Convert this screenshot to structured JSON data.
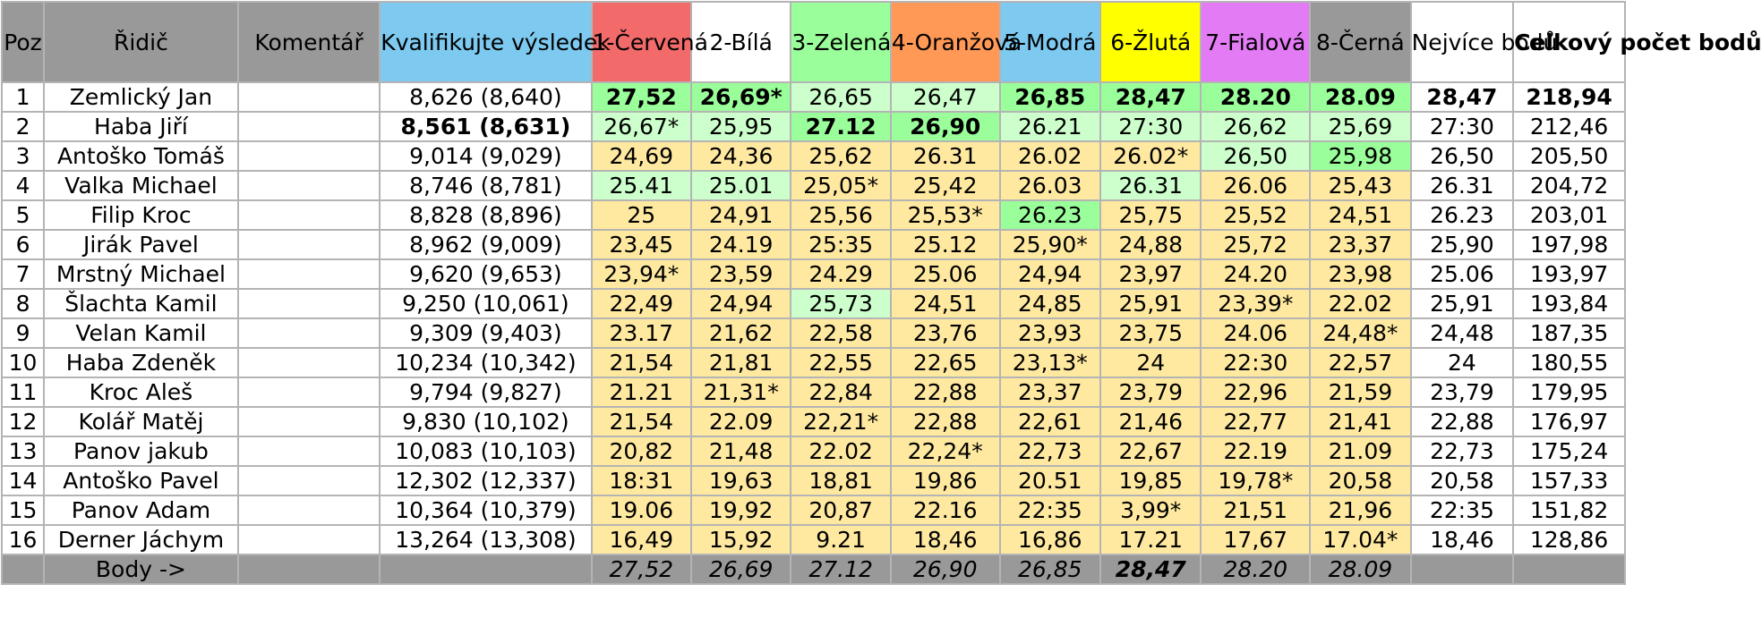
{
  "table": {
    "headers": {
      "pos": "Poz",
      "driver": "Řidič",
      "comment": "Komentář",
      "qual": "Kvalifikujte výsledek",
      "best": "Nejvíce bodů",
      "total": "Celkový počet bodů"
    },
    "lanes": [
      {
        "label": "1-Červená",
        "color": "#f26a6a"
      },
      {
        "label": "2-Bílá",
        "color": "#ffffff"
      },
      {
        "label": "3-Zelená",
        "color": "#9aff9a"
      },
      {
        "label": "4-Oranžová",
        "color": "#ff9955"
      },
      {
        "label": "5-Modrá",
        "color": "#7dc9f0"
      },
      {
        "label": "6-Žlutá",
        "color": "#ffff00"
      },
      {
        "label": "7-Fialová",
        "color": "#e37bf5"
      },
      {
        "label": "8-Černá",
        "color": "#999999"
      }
    ],
    "qual_header_color": "#7dc9f0",
    "rows": [
      {
        "pos": "1",
        "driver": "Zemlický Jan",
        "comment": "",
        "qual": "8,626 (8,640)",
        "qual_bold": false,
        "lanes": [
          {
            "v": "27,52",
            "c": "g",
            "b": true
          },
          {
            "v": "26,69*",
            "c": "g",
            "b": true
          },
          {
            "v": "26,65",
            "c": "lg",
            "b": false
          },
          {
            "v": "26,47",
            "c": "lg",
            "b": false
          },
          {
            "v": "26,85",
            "c": "g",
            "b": true
          },
          {
            "v": "28,47",
            "c": "g",
            "b": true
          },
          {
            "v": "28.20",
            "c": "g",
            "b": true
          },
          {
            "v": "28.09",
            "c": "g",
            "b": true
          }
        ],
        "best": "28,47",
        "total": "218,94",
        "bold_tail": true
      },
      {
        "pos": "2",
        "driver": "Haba Jiří",
        "comment": "",
        "qual": "8,561 (8,631)",
        "qual_bold": true,
        "lanes": [
          {
            "v": "26,67*",
            "c": "lg",
            "b": false
          },
          {
            "v": "25,95",
            "c": "lg",
            "b": false
          },
          {
            "v": "27.12",
            "c": "g",
            "b": true
          },
          {
            "v": "26,90",
            "c": "g",
            "b": true
          },
          {
            "v": "26.21",
            "c": "lg",
            "b": false
          },
          {
            "v": "27:30",
            "c": "lg",
            "b": false
          },
          {
            "v": "26,62",
            "c": "lg",
            "b": false
          },
          {
            "v": "25,69",
            "c": "lg",
            "b": false
          }
        ],
        "best": "27:30",
        "total": "212,46",
        "bold_tail": false
      },
      {
        "pos": "3",
        "driver": "Antoško Tomáš",
        "comment": "",
        "qual": "9,014 (9,029)",
        "qual_bold": false,
        "lanes": [
          {
            "v": "24,69",
            "c": "y",
            "b": false
          },
          {
            "v": "24,36",
            "c": "y",
            "b": false
          },
          {
            "v": "25,62",
            "c": "y",
            "b": false
          },
          {
            "v": "26.31",
            "c": "y",
            "b": false
          },
          {
            "v": "26.02",
            "c": "y",
            "b": false
          },
          {
            "v": "26.02*",
            "c": "y",
            "b": false
          },
          {
            "v": "26,50",
            "c": "lg",
            "b": false
          },
          {
            "v": "25,98",
            "c": "g",
            "b": false
          }
        ],
        "best": "26,50",
        "total": "205,50",
        "bold_tail": false
      },
      {
        "pos": "4",
        "driver": "Valka Michael",
        "comment": "",
        "qual": "8,746 (8,781)",
        "qual_bold": false,
        "lanes": [
          {
            "v": "25.41",
            "c": "lg",
            "b": false
          },
          {
            "v": "25.01",
            "c": "lg",
            "b": false
          },
          {
            "v": "25,05*",
            "c": "y",
            "b": false
          },
          {
            "v": "25,42",
            "c": "y",
            "b": false
          },
          {
            "v": "26.03",
            "c": "y",
            "b": false
          },
          {
            "v": "26.31",
            "c": "lg",
            "b": false
          },
          {
            "v": "26.06",
            "c": "y",
            "b": false
          },
          {
            "v": "25,43",
            "c": "y",
            "b": false
          }
        ],
        "best": "26.31",
        "total": "204,72",
        "bold_tail": false
      },
      {
        "pos": "5",
        "driver": "Filip Kroc",
        "comment": "",
        "qual": "8,828 (8,896)",
        "qual_bold": false,
        "lanes": [
          {
            "v": "25",
            "c": "y",
            "b": false
          },
          {
            "v": "24,91",
            "c": "y",
            "b": false
          },
          {
            "v": "25,56",
            "c": "y",
            "b": false
          },
          {
            "v": "25,53*",
            "c": "y",
            "b": false
          },
          {
            "v": "26.23",
            "c": "g",
            "b": false
          },
          {
            "v": "25,75",
            "c": "y",
            "b": false
          },
          {
            "v": "25,52",
            "c": "y",
            "b": false
          },
          {
            "v": "24,51",
            "c": "y",
            "b": false
          }
        ],
        "best": "26.23",
        "total": "203,01",
        "bold_tail": false
      },
      {
        "pos": "6",
        "driver": "Jirák Pavel",
        "comment": "",
        "qual": "8,962 (9,009)",
        "qual_bold": false,
        "lanes": [
          {
            "v": "23,45",
            "c": "y",
            "b": false
          },
          {
            "v": "24.19",
            "c": "y",
            "b": false
          },
          {
            "v": "25:35",
            "c": "y",
            "b": false
          },
          {
            "v": "25.12",
            "c": "y",
            "b": false
          },
          {
            "v": "25,90*",
            "c": "y",
            "b": false
          },
          {
            "v": "24,88",
            "c": "y",
            "b": false
          },
          {
            "v": "25,72",
            "c": "y",
            "b": false
          },
          {
            "v": "23,37",
            "c": "y",
            "b": false
          }
        ],
        "best": "25,90",
        "total": "197,98",
        "bold_tail": false
      },
      {
        "pos": "7",
        "driver": "Mrstný Michael",
        "comment": "",
        "qual": "9,620 (9,653)",
        "qual_bold": false,
        "lanes": [
          {
            "v": "23,94*",
            "c": "y",
            "b": false
          },
          {
            "v": "23,59",
            "c": "y",
            "b": false
          },
          {
            "v": "24.29",
            "c": "y",
            "b": false
          },
          {
            "v": "25.06",
            "c": "y",
            "b": false
          },
          {
            "v": "24,94",
            "c": "y",
            "b": false
          },
          {
            "v": "23,97",
            "c": "y",
            "b": false
          },
          {
            "v": "24.20",
            "c": "y",
            "b": false
          },
          {
            "v": "23,98",
            "c": "y",
            "b": false
          }
        ],
        "best": "25.06",
        "total": "193,97",
        "bold_tail": false
      },
      {
        "pos": "8",
        "driver": "Šlachta Kamil",
        "comment": "",
        "qual": "9,250 (10,061)",
        "qual_bold": false,
        "lanes": [
          {
            "v": "22,49",
            "c": "y",
            "b": false
          },
          {
            "v": "24,94",
            "c": "y",
            "b": false
          },
          {
            "v": "25,73",
            "c": "lg",
            "b": false
          },
          {
            "v": "24,51",
            "c": "y",
            "b": false
          },
          {
            "v": "24,85",
            "c": "y",
            "b": false
          },
          {
            "v": "25,91",
            "c": "y",
            "b": false
          },
          {
            "v": "23,39*",
            "c": "y",
            "b": false
          },
          {
            "v": "22.02",
            "c": "y",
            "b": false
          }
        ],
        "best": "25,91",
        "total": "193,84",
        "bold_tail": false
      },
      {
        "pos": "9",
        "driver": "Velan Kamil",
        "comment": "",
        "qual": "9,309 (9,403)",
        "qual_bold": false,
        "lanes": [
          {
            "v": "23.17",
            "c": "y",
            "b": false
          },
          {
            "v": "21,62",
            "c": "y",
            "b": false
          },
          {
            "v": "22,58",
            "c": "y",
            "b": false
          },
          {
            "v": "23,76",
            "c": "y",
            "b": false
          },
          {
            "v": "23,93",
            "c": "y",
            "b": false
          },
          {
            "v": "23,75",
            "c": "y",
            "b": false
          },
          {
            "v": "24.06",
            "c": "y",
            "b": false
          },
          {
            "v": "24,48*",
            "c": "y",
            "b": false
          }
        ],
        "best": "24,48",
        "total": "187,35",
        "bold_tail": false
      },
      {
        "pos": "10",
        "driver": "Haba Zdeněk",
        "comment": "",
        "qual": "10,234 (10,342)",
        "qual_bold": false,
        "lanes": [
          {
            "v": "21,54",
            "c": "y",
            "b": false
          },
          {
            "v": "21,81",
            "c": "y",
            "b": false
          },
          {
            "v": "22,55",
            "c": "y",
            "b": false
          },
          {
            "v": "22,65",
            "c": "y",
            "b": false
          },
          {
            "v": "23,13*",
            "c": "y",
            "b": false
          },
          {
            "v": "24",
            "c": "y",
            "b": false
          },
          {
            "v": "22:30",
            "c": "y",
            "b": false
          },
          {
            "v": "22,57",
            "c": "y",
            "b": false
          }
        ],
        "best": "24",
        "total": "180,55",
        "bold_tail": false
      },
      {
        "pos": "11",
        "driver": "Kroc Aleš",
        "comment": "",
        "qual": "9,794 (9,827)",
        "qual_bold": false,
        "lanes": [
          {
            "v": "21.21",
            "c": "y",
            "b": false
          },
          {
            "v": "21,31*",
            "c": "y",
            "b": false
          },
          {
            "v": "22,84",
            "c": "y",
            "b": false
          },
          {
            "v": "22,88",
            "c": "y",
            "b": false
          },
          {
            "v": "23,37",
            "c": "y",
            "b": false
          },
          {
            "v": "23,79",
            "c": "y",
            "b": false
          },
          {
            "v": "22,96",
            "c": "y",
            "b": false
          },
          {
            "v": "21,59",
            "c": "y",
            "b": false
          }
        ],
        "best": "23,79",
        "total": "179,95",
        "bold_tail": false
      },
      {
        "pos": "12",
        "driver": "Kolář Matěj",
        "comment": "",
        "qual": "9,830 (10,102)",
        "qual_bold": false,
        "lanes": [
          {
            "v": "21,54",
            "c": "y",
            "b": false
          },
          {
            "v": "22.09",
            "c": "y",
            "b": false
          },
          {
            "v": "22,21*",
            "c": "y",
            "b": false
          },
          {
            "v": "22,88",
            "c": "y",
            "b": false
          },
          {
            "v": "22,61",
            "c": "y",
            "b": false
          },
          {
            "v": "21,46",
            "c": "y",
            "b": false
          },
          {
            "v": "22,77",
            "c": "y",
            "b": false
          },
          {
            "v": "21,41",
            "c": "y",
            "b": false
          }
        ],
        "best": "22,88",
        "total": "176,97",
        "bold_tail": false
      },
      {
        "pos": "13",
        "driver": "Panov jakub",
        "comment": "",
        "qual": "10,083 (10,103)",
        "qual_bold": false,
        "lanes": [
          {
            "v": "20,82",
            "c": "y",
            "b": false
          },
          {
            "v": "21,48",
            "c": "y",
            "b": false
          },
          {
            "v": "22.02",
            "c": "y",
            "b": false
          },
          {
            "v": "22,24*",
            "c": "y",
            "b": false
          },
          {
            "v": "22,73",
            "c": "y",
            "b": false
          },
          {
            "v": "22,67",
            "c": "y",
            "b": false
          },
          {
            "v": "22.19",
            "c": "y",
            "b": false
          },
          {
            "v": "21.09",
            "c": "y",
            "b": false
          }
        ],
        "best": "22,73",
        "total": "175,24",
        "bold_tail": false
      },
      {
        "pos": "14",
        "driver": "Antoško Pavel",
        "comment": "",
        "qual": "12,302 (12,337)",
        "qual_bold": false,
        "lanes": [
          {
            "v": "18:31",
            "c": "y",
            "b": false
          },
          {
            "v": "19,63",
            "c": "y",
            "b": false
          },
          {
            "v": "18,81",
            "c": "y",
            "b": false
          },
          {
            "v": "19,86",
            "c": "y",
            "b": false
          },
          {
            "v": "20.51",
            "c": "y",
            "b": false
          },
          {
            "v": "19,85",
            "c": "y",
            "b": false
          },
          {
            "v": "19,78*",
            "c": "y",
            "b": false
          },
          {
            "v": "20,58",
            "c": "y",
            "b": false
          }
        ],
        "best": "20,58",
        "total": "157,33",
        "bold_tail": false
      },
      {
        "pos": "15",
        "driver": "Panov Adam",
        "comment": "",
        "qual": "10,364 (10,379)",
        "qual_bold": false,
        "lanes": [
          {
            "v": "19.06",
            "c": "y",
            "b": false
          },
          {
            "v": "19,92",
            "c": "y",
            "b": false
          },
          {
            "v": "20,87",
            "c": "y",
            "b": false
          },
          {
            "v": "22.16",
            "c": "y",
            "b": false
          },
          {
            "v": "22:35",
            "c": "y",
            "b": false
          },
          {
            "v": "3,99*",
            "c": "y",
            "b": false
          },
          {
            "v": "21,51",
            "c": "y",
            "b": false
          },
          {
            "v": "21,96",
            "c": "y",
            "b": false
          }
        ],
        "best": "22:35",
        "total": "151,82",
        "bold_tail": false
      },
      {
        "pos": "16",
        "driver": "Derner Jáchym",
        "comment": "",
        "qual": "13,264 (13,308)",
        "qual_bold": false,
        "lanes": [
          {
            "v": "16,49",
            "c": "y",
            "b": false
          },
          {
            "v": "15,92",
            "c": "y",
            "b": false
          },
          {
            "v": "9.21",
            "c": "y",
            "b": false
          },
          {
            "v": "18,46",
            "c": "y",
            "b": false
          },
          {
            "v": "16,86",
            "c": "y",
            "b": false
          },
          {
            "v": "17.21",
            "c": "y",
            "b": false
          },
          {
            "v": "17,67",
            "c": "y",
            "b": false
          },
          {
            "v": "17.04*",
            "c": "y",
            "b": false
          }
        ],
        "best": "18,46",
        "total": "128,86",
        "bold_tail": false
      }
    ],
    "footer": {
      "label": "Body ->",
      "values": [
        "27,52",
        "26,69",
        "27.12",
        "26,90",
        "26,85",
        "28,47",
        "28.20",
        "28.09"
      ],
      "bold_index": 5
    }
  }
}
